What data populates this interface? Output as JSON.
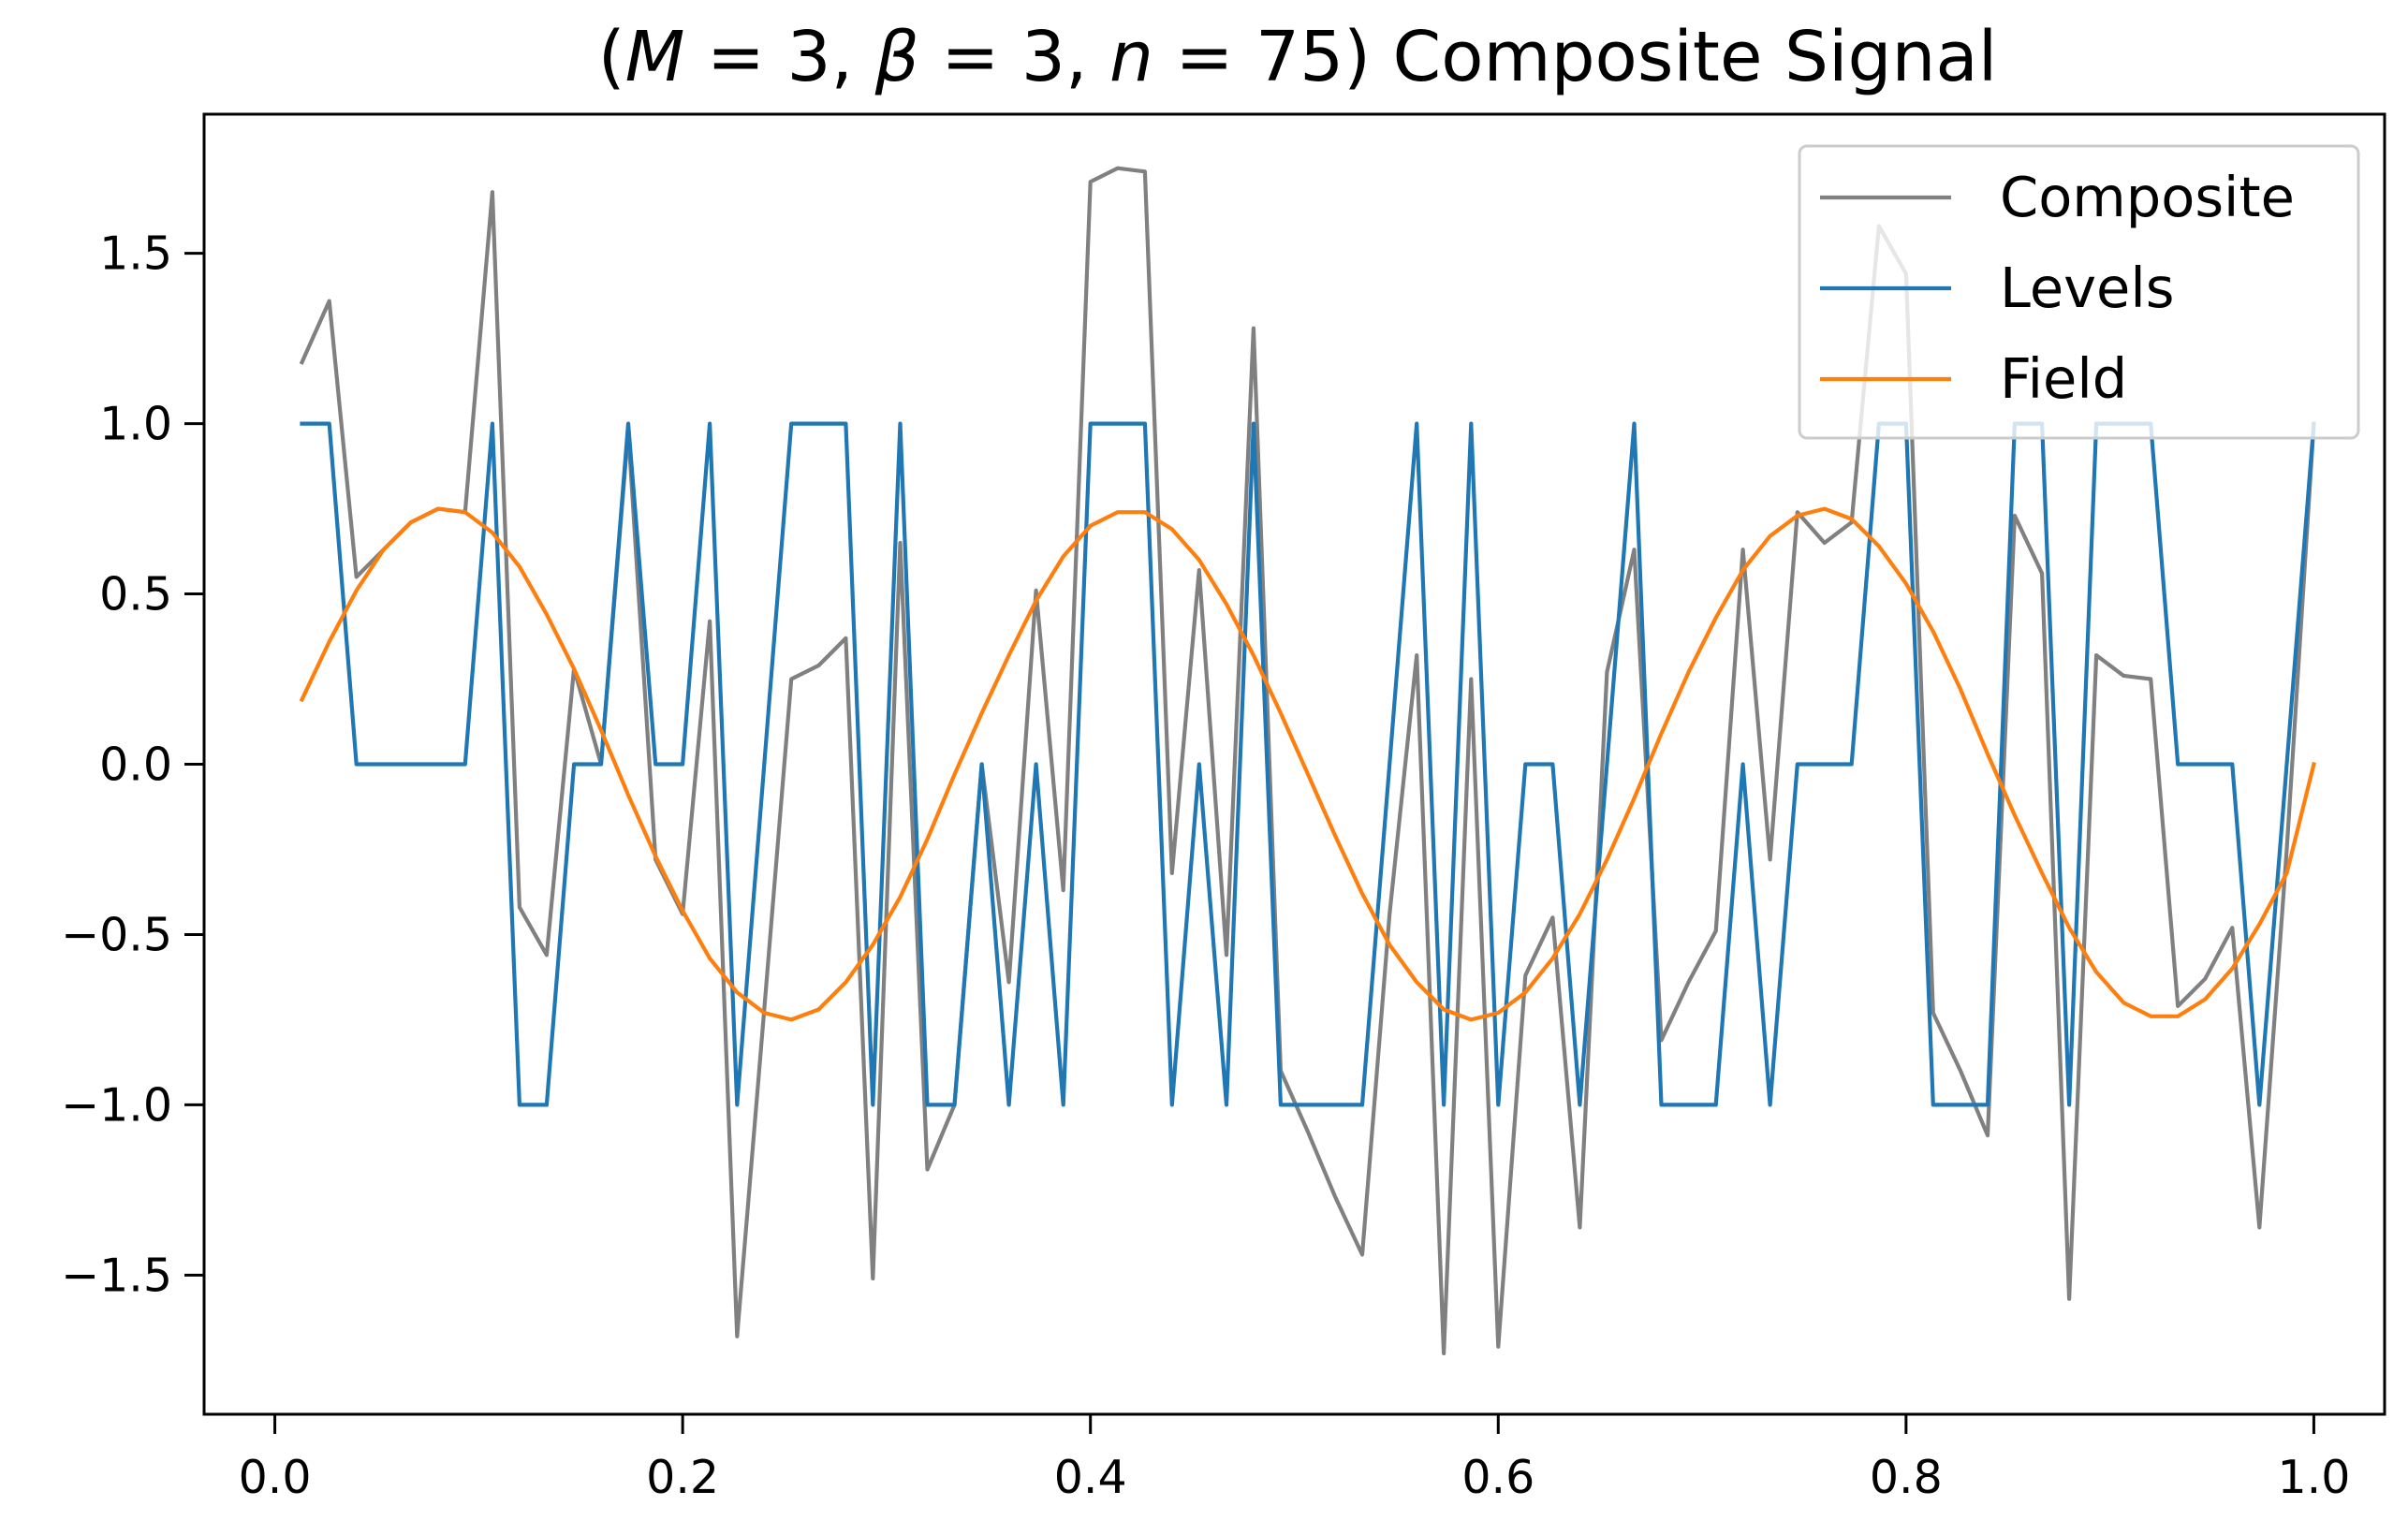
{
  "chart_data": {
    "type": "line",
    "title_parts": {
      "open": "(",
      "M": "M",
      "eq1": " = 3, ",
      "beta": "β",
      "eq2": " = 3, ",
      "n": "n",
      "eq3": " = 75) ",
      "rest": "Composite Signal"
    },
    "xlabel": "",
    "ylabel": "",
    "xlim": [
      -0.0347,
      1.0347
    ],
    "ylim": [
      -1.9085,
      1.9085
    ],
    "xticks": [
      0.0,
      0.2,
      0.4,
      0.6,
      0.8,
      1.0
    ],
    "xtick_labels": [
      "0.0",
      "0.2",
      "0.4",
      "0.6",
      "0.8",
      "1.0"
    ],
    "yticks": [
      1.5,
      1.0,
      0.5,
      0.0,
      -0.5,
      -1.0,
      -1.5
    ],
    "ytick_labels": [
      "1.5",
      "1.0",
      "0.5",
      "0.0",
      "−0.5",
      "−1.0",
      "−1.5"
    ],
    "grid": false,
    "legend_position": "top-right",
    "series": [
      {
        "name": "Composite",
        "color": "#808080",
        "x": [
          0.0133,
          0.0267,
          0.04,
          0.0533,
          0.0667,
          0.08,
          0.0933,
          0.1067,
          0.12,
          0.1333,
          0.1467,
          0.16,
          0.1733,
          0.1867,
          0.2,
          0.2133,
          0.2267,
          0.24,
          0.2533,
          0.2667,
          0.28,
          0.2933,
          0.3067,
          0.32,
          0.3333,
          0.3467,
          0.36,
          0.3733,
          0.3867,
          0.4,
          0.4133,
          0.4267,
          0.44,
          0.4533,
          0.4667,
          0.48,
          0.4933,
          0.5067,
          0.52,
          0.5333,
          0.5467,
          0.56,
          0.5733,
          0.5867,
          0.6,
          0.6133,
          0.6267,
          0.64,
          0.6533,
          0.6667,
          0.68,
          0.6933,
          0.7067,
          0.72,
          0.7333,
          0.7467,
          0.76,
          0.7733,
          0.7867,
          0.8,
          0.8133,
          0.8267,
          0.84,
          0.8533,
          0.8667,
          0.88,
          0.8933,
          0.9067,
          0.92,
          0.9333,
          0.9467,
          0.96,
          0.9733,
          0.9867,
          1.0
        ],
        "y": [
          1.18,
          1.36,
          0.55,
          0.63,
          0.71,
          0.75,
          0.74,
          1.68,
          -0.42,
          -0.56,
          0.28,
          0.0,
          0.98,
          -0.28,
          -0.44,
          0.42,
          -1.68,
          -0.72,
          0.25,
          0.29,
          0.37,
          -1.51,
          0.65,
          -1.19,
          -1.0,
          0.0,
          -0.64,
          0.51,
          -0.37,
          1.71,
          1.75,
          1.74,
          -0.32,
          0.57,
          -0.56,
          1.28,
          -0.9,
          -1.08,
          -1.27,
          -1.44,
          -0.44,
          0.32,
          -1.73,
          0.25,
          -1.71,
          -0.62,
          -0.45,
          -1.36,
          0.27,
          0.63,
          -0.81,
          -0.64,
          -0.49,
          0.63,
          -0.28,
          0.74,
          0.65,
          0.71,
          1.58,
          1.44,
          -0.73,
          -0.9,
          -1.09,
          0.73,
          0.56,
          -1.57,
          0.32,
          0.26,
          0.25,
          -0.71,
          -0.63,
          -0.48,
          -1.36,
          -0.25,
          1.0
        ]
      },
      {
        "name": "Levels",
        "color": "#1f77b4",
        "x": [
          0.0133,
          0.0267,
          0.04,
          0.0533,
          0.0667,
          0.08,
          0.0933,
          0.1067,
          0.12,
          0.1333,
          0.1467,
          0.16,
          0.1733,
          0.1867,
          0.2,
          0.2133,
          0.2267,
          0.24,
          0.2533,
          0.2667,
          0.28,
          0.2933,
          0.3067,
          0.32,
          0.3333,
          0.3467,
          0.36,
          0.3733,
          0.3867,
          0.4,
          0.4133,
          0.4267,
          0.44,
          0.4533,
          0.4667,
          0.48,
          0.4933,
          0.5067,
          0.52,
          0.5333,
          0.5467,
          0.56,
          0.5733,
          0.5867,
          0.6,
          0.6133,
          0.6267,
          0.64,
          0.6533,
          0.6667,
          0.68,
          0.6933,
          0.7067,
          0.72,
          0.7333,
          0.7467,
          0.76,
          0.7733,
          0.7867,
          0.8,
          0.8133,
          0.8267,
          0.84,
          0.8533,
          0.8667,
          0.88,
          0.8933,
          0.9067,
          0.92,
          0.9333,
          0.9467,
          0.96,
          0.9733,
          0.9867,
          1.0
        ],
        "y": [
          1,
          1,
          0,
          0,
          0,
          0,
          0,
          1,
          -1,
          -1,
          0,
          0,
          1,
          0,
          0,
          1,
          -1,
          0,
          1,
          1,
          1,
          -1,
          1,
          -1,
          -1,
          0,
          -1,
          0,
          -1,
          1,
          1,
          1,
          -1,
          0,
          -1,
          1,
          -1,
          -1,
          -1,
          -1,
          0,
          1,
          -1,
          1,
          -1,
          0,
          0,
          -1,
          0,
          1,
          -1,
          -1,
          -1,
          0,
          -1,
          0,
          0,
          0,
          1,
          1,
          -1,
          -1,
          -1,
          1,
          1,
          -1,
          1,
          1,
          1,
          0,
          0,
          0,
          -1,
          0,
          1
        ]
      },
      {
        "name": "Field",
        "color": "#ff7f0e",
        "x": [
          0.0133,
          0.0267,
          0.04,
          0.0533,
          0.0667,
          0.08,
          0.0933,
          0.1067,
          0.12,
          0.1333,
          0.1467,
          0.16,
          0.1733,
          0.1867,
          0.2,
          0.2133,
          0.2267,
          0.24,
          0.2533,
          0.2667,
          0.28,
          0.2933,
          0.3067,
          0.32,
          0.3333,
          0.3467,
          0.36,
          0.3733,
          0.3867,
          0.4,
          0.4133,
          0.4267,
          0.44,
          0.4533,
          0.4667,
          0.48,
          0.4933,
          0.5067,
          0.52,
          0.5333,
          0.5467,
          0.56,
          0.5733,
          0.5867,
          0.6,
          0.6133,
          0.6267,
          0.64,
          0.6533,
          0.6667,
          0.68,
          0.6933,
          0.7067,
          0.72,
          0.7333,
          0.7467,
          0.76,
          0.7733,
          0.7867,
          0.8,
          0.8133,
          0.8267,
          0.84,
          0.8533,
          0.8667,
          0.88,
          0.8933,
          0.9067,
          0.92,
          0.9333,
          0.9467,
          0.96,
          0.9733,
          0.9867,
          1.0
        ],
        "y": [
          0.19,
          0.36,
          0.51,
          0.63,
          0.71,
          0.75,
          0.74,
          0.68,
          0.58,
          0.44,
          0.28,
          0.1,
          -0.09,
          -0.27,
          -0.43,
          -0.57,
          -0.67,
          -0.73,
          -0.75,
          -0.72,
          -0.64,
          -0.53,
          -0.39,
          -0.22,
          -0.03,
          0.15,
          0.32,
          0.48,
          0.61,
          0.7,
          0.74,
          0.74,
          0.69,
          0.6,
          0.47,
          0.32,
          0.15,
          -0.03,
          -0.21,
          -0.38,
          -0.53,
          -0.64,
          -0.72,
          -0.75,
          -0.73,
          -0.67,
          -0.57,
          -0.44,
          -0.28,
          -0.1,
          0.09,
          0.27,
          0.43,
          0.57,
          0.67,
          0.73,
          0.75,
          0.72,
          0.64,
          0.53,
          0.39,
          0.22,
          0.03,
          -0.15,
          -0.32,
          -0.48,
          -0.61,
          -0.7,
          -0.74,
          -0.74,
          -0.69,
          -0.6,
          -0.47,
          -0.32,
          0.0
        ]
      }
    ]
  }
}
